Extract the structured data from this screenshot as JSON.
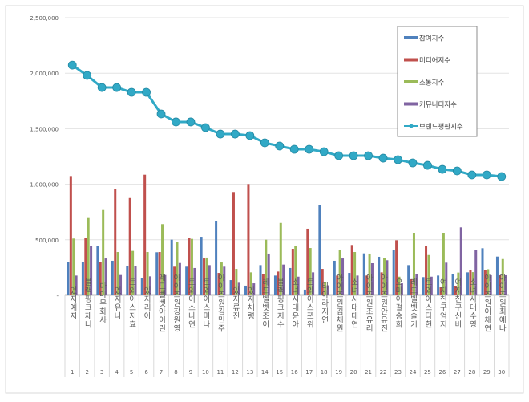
{
  "chart_data": {
    "type": "bar",
    "ylim": [
      0,
      2500000
    ],
    "yticks": [
      "-",
      "500,000",
      "1,000,000",
      "1,500,000",
      "2,000,000",
      "2,500,000"
    ],
    "grid": true,
    "legend_position": "top-right",
    "categories": [
      "있지 예지",
      "블랙핑크 제니",
      "마마무 화사",
      "있지 유나",
      "트와이스 지효",
      "있지 리아",
      "레드벨벳 아이린",
      "아이즈원 장원영",
      "트와이스 나연",
      "트와이스 미나",
      "아이즈원 김민주",
      "있지 류진",
      "있지 채령",
      "레드벨벳 조이",
      "블랙핑크 지수",
      "소녀시대 윤아",
      "트와이스 쯔위",
      "티아라 지연",
      "아이즈원 김채원",
      "소녀시대 태연",
      "아이즈원 조유리",
      "아이즈원 안유진",
      "오마이걸 승희",
      "레드벨벳 슬기",
      "트와이스 다현",
      "여자친구 엄지",
      "여자친구 신비",
      "소녀시대 수영",
      "아이즈원 이채연",
      "아이즈원 최예나"
    ],
    "ranks": [
      "1",
      "2",
      "3",
      "4",
      "5",
      "6",
      "7",
      "8",
      "9",
      "10",
      "11",
      "12",
      "13",
      "14",
      "15",
      "16",
      "17",
      "18",
      "19",
      "20",
      "21",
      "22",
      "23",
      "24",
      "25",
      "26",
      "27",
      "28",
      "29",
      "30"
    ],
    "series": [
      {
        "name": "참여지수",
        "type": "bar",
        "color": "#4F81BD",
        "values": [
          298000,
          303000,
          443000,
          311000,
          262000,
          154000,
          388000,
          501000,
          258000,
          527000,
          667000,
          137000,
          87000,
          272000,
          178000,
          246000,
          51000,
          814000,
          311000,
          202000,
          378000,
          347000,
          405000,
          272000,
          164000,
          178000,
          193000,
          207000,
          424000,
          349000
        ]
      },
      {
        "name": "미디어지수",
        "type": "bar",
        "color": "#C0504D",
        "values": [
          1074000,
          515000,
          298000,
          954000,
          876000,
          1086000,
          390000,
          258000,
          520000,
          332000,
          202000,
          930000,
          1002000,
          195000,
          214000,
          419000,
          600000,
          238000,
          178000,
          453000,
          178000,
          207000,
          496000,
          145000,
          448000,
          72000,
          84000,
          231000,
          224000,
          181000
        ]
      },
      {
        "name": "소통지수",
        "type": "bar",
        "color": "#9BBB59",
        "values": [
          511000,
          696000,
          768000,
          390000,
          400000,
          390000,
          641000,
          482000,
          508000,
          340000,
          296000,
          238000,
          207000,
          501000,
          652000,
          443000,
          426000,
          118000,
          405000,
          390000,
          376000,
          336000,
          168000,
          559000,
          363000,
          559000,
          205000,
          209000,
          235000,
          327000
        ]
      },
      {
        "name": "커뮤니티지수",
        "type": "bar",
        "color": "#8064A2",
        "values": [
          178000,
          443000,
          332000,
          183000,
          267000,
          171000,
          183000,
          291000,
          246000,
          272000,
          258000,
          113000,
          108000,
          376000,
          277000,
          168000,
          207000,
          90000,
          332000,
          178000,
          289000,
          316000,
          108000,
          188000,
          168000,
          294000,
          612000,
          409000,
          181000,
          181000
        ]
      },
      {
        "name": "브랜드평판지수",
        "type": "line",
        "color": "#31A9C6",
        "values": [
          2073000,
          1980000,
          1871000,
          1871000,
          1828000,
          1828000,
          1633000,
          1561000,
          1561000,
          1510000,
          1452000,
          1452000,
          1438000,
          1373000,
          1344000,
          1315000,
          1315000,
          1293000,
          1257000,
          1257000,
          1257000,
          1235000,
          1221000,
          1192000,
          1170000,
          1134000,
          1120000,
          1084000,
          1084000,
          1069000
        ]
      }
    ]
  }
}
